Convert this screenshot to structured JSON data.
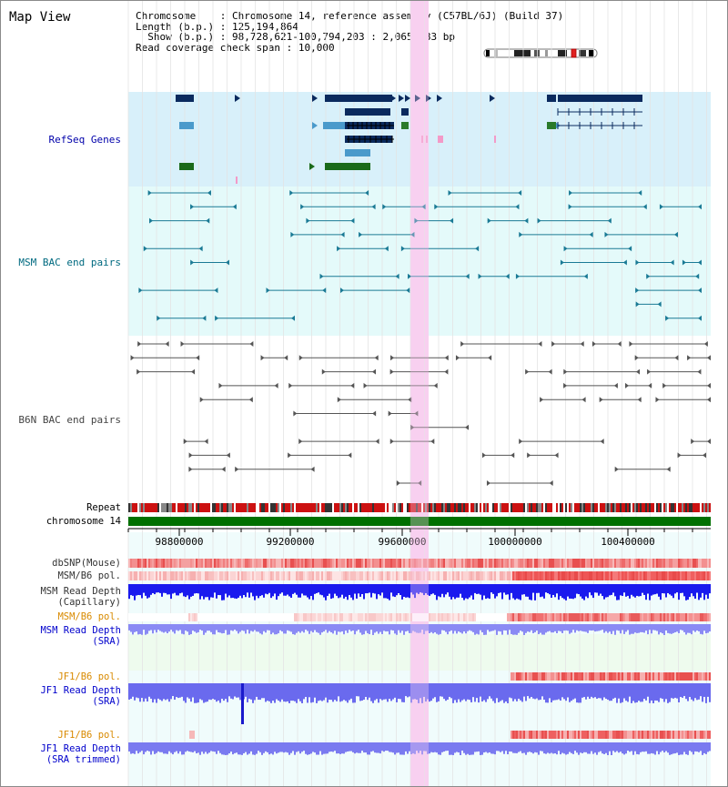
{
  "title": "Map View",
  "info": {
    "chromosome_key": "Chromosome",
    "chromosome_val": "Chromosome 14, reference assembly (C57BL/6J) (Build 37)",
    "length_key": "Length (b.p.)",
    "length_val": "125,194,864",
    "show_key": "Show (b.p.)",
    "show_val": "98,728,621-100,794,203 : 2,065,583 bp",
    "span_key": "Read coverage check span",
    "span_val": "10,000"
  },
  "tracks": {
    "refseq": "RefSeq Genes",
    "msm_bac": "MSM BAC end pairs",
    "b6n_bac": "B6N BAC end pairs",
    "repeat": "Repeat",
    "chromosome": "chromosome 14",
    "dbsnp": "dbSNP(Mouse)",
    "msm_b6_pol_1": "MSM/B6 pol.",
    "msm_depth_cap_1": "MSM Read Depth",
    "msm_depth_cap_2": "(Capillary)",
    "msm_b6_pol_2": "MSM/B6 pol.",
    "msm_depth_sra_1": "MSM Read Depth",
    "msm_depth_sra_2": "(SRA)",
    "jf1_b6_pol_1": "JF1/B6 pol.",
    "jf1_depth_sra_1": "JF1 Read Depth",
    "jf1_depth_sra_2": "(SRA)",
    "jf1_b6_pol_2": "JF1/B6 pol.",
    "jf1_depth_trim_1": "JF1 Read Depth",
    "jf1_depth_trim_2": "(SRA trimmed)"
  },
  "axis": {
    "ticks": [
      "98800000",
      "99200000",
      "99600000",
      "100000000",
      "100400000"
    ]
  },
  "colors": {
    "refseq_label": "#0000aa",
    "msm_label": "#006a80",
    "b6n_label": "#444444",
    "pol_label": "#d98a00",
    "depth_label": "#0000cc",
    "highlight": "#f8d0f0",
    "refseq_bg": "#d8f0fa",
    "msm_bg": "#e4fafa",
    "chromosome": "#007000"
  }
}
